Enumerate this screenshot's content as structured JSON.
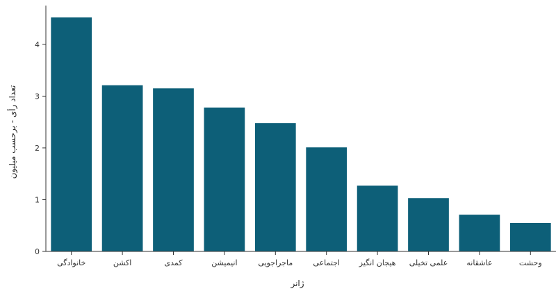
{
  "chart_data": {
    "type": "bar",
    "title": "",
    "xlabel": "ژانر",
    "ylabel": "تعداد رأی - برحسب میلیون",
    "categories": [
      "خانوادگی",
      "اکشن",
      "کمدی",
      "انیمیشن",
      "ماجراجویی",
      "اجتماعی",
      "هیجان انگیز",
      "علمی تخیلی",
      "عاشقانه",
      "وحشت"
    ],
    "values": [
      4.52,
      3.21,
      3.15,
      2.78,
      2.48,
      2.01,
      1.27,
      1.03,
      0.71,
      0.55
    ],
    "ylim": [
      0,
      4.75
    ],
    "yticks": [
      "0",
      "1",
      "2",
      "3",
      "4"
    ],
    "grid": false,
    "bar_color": "#0d5f78",
    "axis_color": "#333333"
  }
}
